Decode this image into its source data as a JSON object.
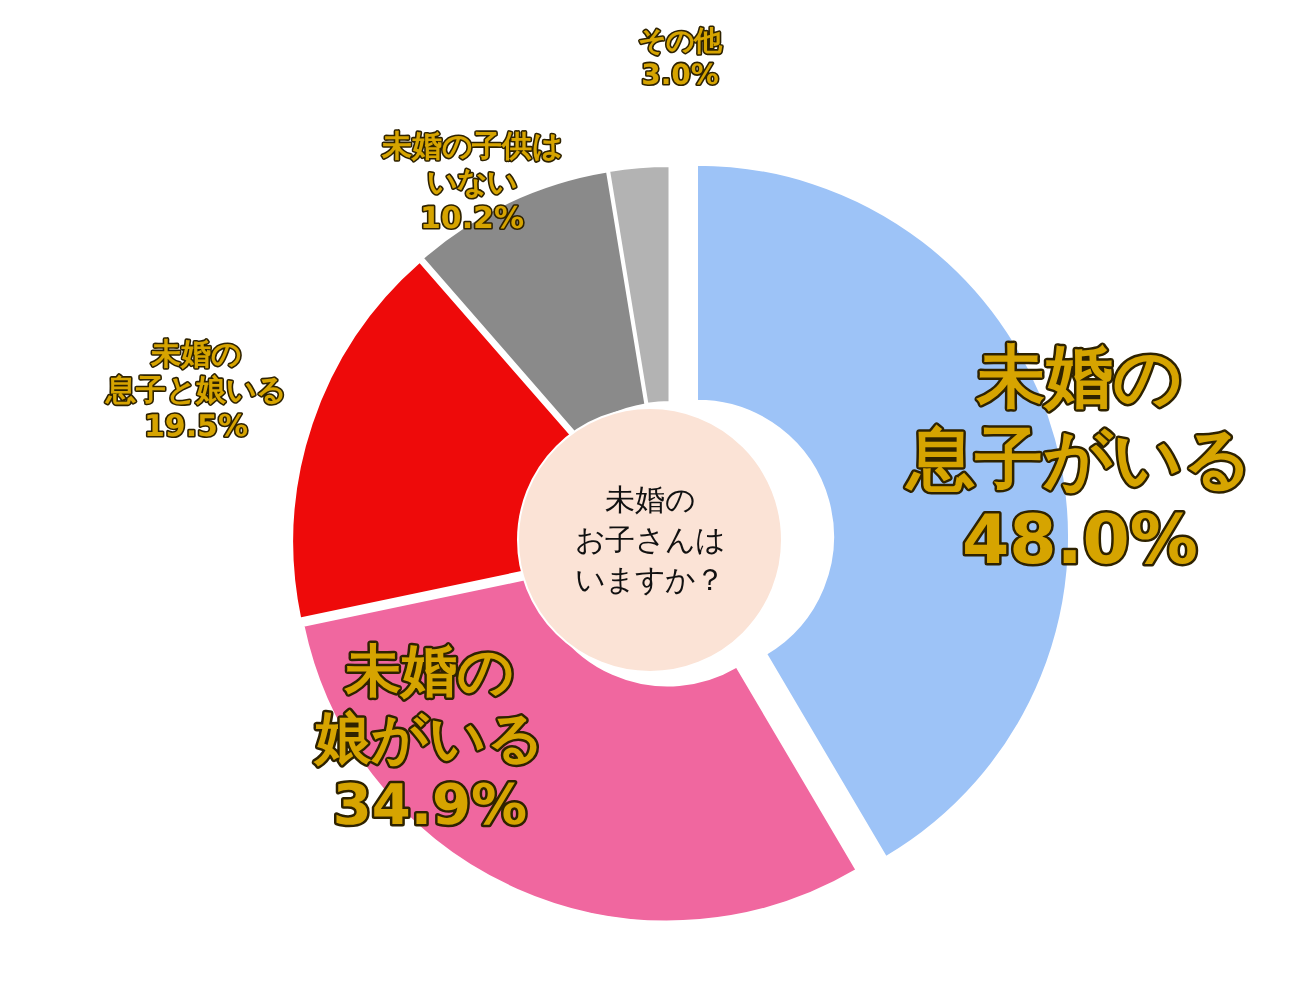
{
  "chart_data": {
    "type": "donut",
    "categories": [
      "未婚の息子がいる",
      "未婚の娘がいる",
      "未婚の息子と娘いる",
      "未婚の子供はいない",
      "その他"
    ],
    "values": [
      48.0,
      34.9,
      19.5,
      10.2,
      3.0
    ],
    "value_labels": [
      "48.0%",
      "34.9%",
      "19.5%",
      "10.2%",
      "3.0%"
    ],
    "colors": [
      "#9dc3f7",
      "#f0679f",
      "#ee0a0a",
      "#8a8a8a",
      "#b3b3b3"
    ],
    "annotations": [
      "未婚のお子さんはいますか？"
    ]
  }
}
